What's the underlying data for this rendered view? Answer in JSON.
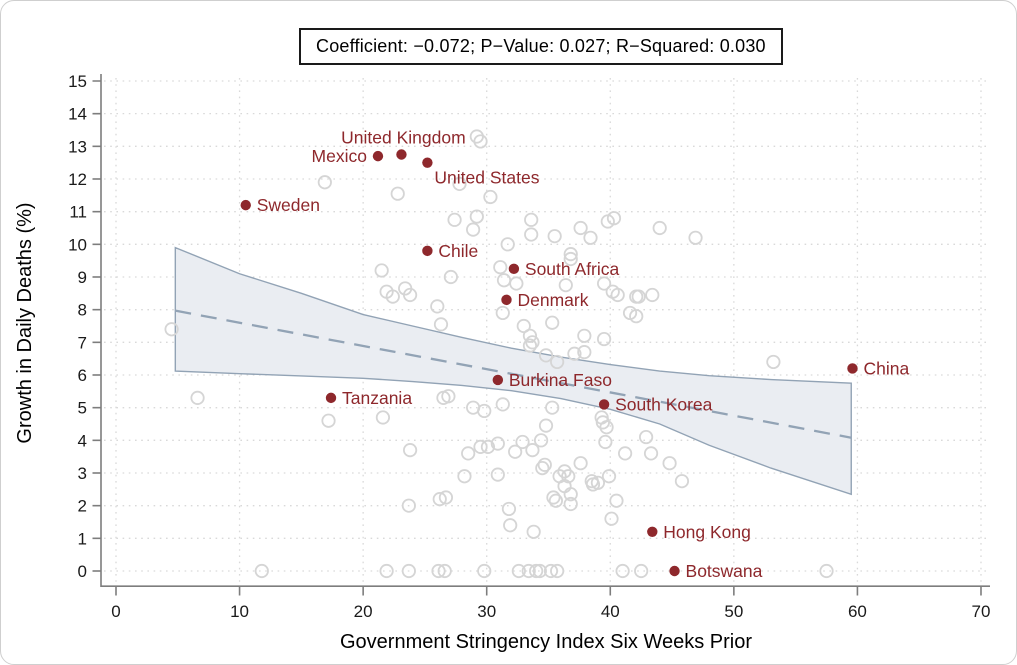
{
  "chart_data": {
    "type": "scatter",
    "title": "Coefficient: −0.072; P−Value: 0.027; R−Squared: 0.030",
    "xlabel": "Government Stringency Index Six Weeks Prior",
    "ylabel": "Growth in Daily Deaths (%)",
    "xlim": [
      0,
      70
    ],
    "ylim": [
      0,
      15
    ],
    "x_ticks": [
      0,
      10,
      20,
      30,
      40,
      50,
      60,
      70
    ],
    "y_ticks": [
      0,
      1,
      2,
      3,
      4,
      5,
      6,
      7,
      8,
      9,
      10,
      11,
      12,
      13,
      14,
      15
    ],
    "grid": "dotted both axes",
    "legend": "none",
    "stats": {
      "coefficient": -0.072,
      "p_value": 0.027,
      "r_squared": 0.03
    },
    "labeled_points": [
      {
        "label": "Sweden",
        "x": 10.5,
        "y": 11.2,
        "placement": "right"
      },
      {
        "label": "Mexico",
        "x": 21.2,
        "y": 12.7,
        "placement": "left"
      },
      {
        "label": "United Kingdom",
        "x": 23.1,
        "y": 12.75,
        "placement": "above"
      },
      {
        "label": "United States",
        "x": 25.2,
        "y": 12.5,
        "placement": "below-right"
      },
      {
        "label": "Chile",
        "x": 25.2,
        "y": 9.8,
        "placement": "right"
      },
      {
        "label": "South Africa",
        "x": 32.2,
        "y": 9.25,
        "placement": "right"
      },
      {
        "label": "Denmark",
        "x": 31.6,
        "y": 8.3,
        "placement": "right"
      },
      {
        "label": "Burkina Faso",
        "x": 30.9,
        "y": 5.85,
        "placement": "right"
      },
      {
        "label": "Tanzania",
        "x": 17.4,
        "y": 5.3,
        "placement": "right"
      },
      {
        "label": "South Korea",
        "x": 39.5,
        "y": 5.1,
        "placement": "right"
      },
      {
        "label": "China",
        "x": 59.6,
        "y": 6.2,
        "placement": "right"
      },
      {
        "label": "Hong Kong",
        "x": 43.4,
        "y": 1.2,
        "placement": "right"
      },
      {
        "label": "Botswana",
        "x": 45.2,
        "y": 0.0,
        "placement": "right"
      }
    ],
    "background_points": [
      [
        29.2,
        13.3
      ],
      [
        29.5,
        13.15
      ],
      [
        27.8,
        11.85
      ],
      [
        16.9,
        11.9
      ],
      [
        22.8,
        11.55
      ],
      [
        30.3,
        11.45
      ],
      [
        27.4,
        10.75
      ],
      [
        29.2,
        10.85
      ],
      [
        28.9,
        10.45
      ],
      [
        33.6,
        10.75
      ],
      [
        33.6,
        10.3
      ],
      [
        35.5,
        10.25
      ],
      [
        37.6,
        10.5
      ],
      [
        38.4,
        10.2
      ],
      [
        39.8,
        10.7
      ],
      [
        40.3,
        10.8
      ],
      [
        44.0,
        10.5
      ],
      [
        46.9,
        10.2
      ],
      [
        31.7,
        10.0
      ],
      [
        21.5,
        9.2
      ],
      [
        31.1,
        9.3
      ],
      [
        27.1,
        9.0
      ],
      [
        31.4,
        8.9
      ],
      [
        32.4,
        8.8
      ],
      [
        36.8,
        9.7
      ],
      [
        36.8,
        9.55
      ],
      [
        36.4,
        8.75
      ],
      [
        39.5,
        8.8
      ],
      [
        42.3,
        8.4
      ],
      [
        43.4,
        8.45
      ],
      [
        21.9,
        8.55
      ],
      [
        22.4,
        8.4
      ],
      [
        23.4,
        8.65
      ],
      [
        23.8,
        8.45
      ],
      [
        26.0,
        8.1
      ],
      [
        26.3,
        7.55
      ],
      [
        31.3,
        7.9
      ],
      [
        40.2,
        8.55
      ],
      [
        40.6,
        8.45
      ],
      [
        42.1,
        8.4
      ],
      [
        41.6,
        7.9
      ],
      [
        42.1,
        7.8
      ],
      [
        33.0,
        7.5
      ],
      [
        33.5,
        7.2
      ],
      [
        33.7,
        7.0
      ],
      [
        33.5,
        6.9
      ],
      [
        35.3,
        7.6
      ],
      [
        37.9,
        7.2
      ],
      [
        37.1,
        6.65
      ],
      [
        37.9,
        6.7
      ],
      [
        34.8,
        6.6
      ],
      [
        35.7,
        6.4
      ],
      [
        39.5,
        7.1
      ],
      [
        4.5,
        7.4
      ],
      [
        53.2,
        6.4
      ],
      [
        6.6,
        5.3
      ],
      [
        17.2,
        4.6
      ],
      [
        21.6,
        4.7
      ],
      [
        23.8,
        3.7
      ],
      [
        26.5,
        5.3
      ],
      [
        26.9,
        5.35
      ],
      [
        28.9,
        5.0
      ],
      [
        29.8,
        4.9
      ],
      [
        31.3,
        5.1
      ],
      [
        35.3,
        5.0
      ],
      [
        39.3,
        4.7
      ],
      [
        39.7,
        4.4
      ],
      [
        42.9,
        4.1
      ],
      [
        30.9,
        3.9
      ],
      [
        32.3,
        3.65
      ],
      [
        32.9,
        3.95
      ],
      [
        33.7,
        3.7
      ],
      [
        34.4,
        4.0
      ],
      [
        34.8,
        4.45
      ],
      [
        39.4,
        4.55
      ],
      [
        39.6,
        3.95
      ],
      [
        34.5,
        3.15
      ],
      [
        34.7,
        3.25
      ],
      [
        35.9,
        2.9
      ],
      [
        36.3,
        3.05
      ],
      [
        36.6,
        2.9
      ],
      [
        37.6,
        3.3
      ],
      [
        30.9,
        2.95
      ],
      [
        38.5,
        2.75
      ],
      [
        39.0,
        2.7
      ],
      [
        36.3,
        2.6
      ],
      [
        28.5,
        3.6
      ],
      [
        29.5,
        3.8
      ],
      [
        30.1,
        3.8
      ],
      [
        41.2,
        3.6
      ],
      [
        43.3,
        3.6
      ],
      [
        44.8,
        3.3
      ],
      [
        45.8,
        2.75
      ],
      [
        23.7,
        2.0
      ],
      [
        26.2,
        2.2
      ],
      [
        26.7,
        2.25
      ],
      [
        28.2,
        2.9
      ],
      [
        31.8,
        1.9
      ],
      [
        31.9,
        1.4
      ],
      [
        33.8,
        1.2
      ],
      [
        36.8,
        2.35
      ],
      [
        36.8,
        2.05
      ],
      [
        35.4,
        2.25
      ],
      [
        35.6,
        2.15
      ],
      [
        38.6,
        2.65
      ],
      [
        39.9,
        2.9
      ],
      [
        40.5,
        2.15
      ],
      [
        40.1,
        1.6
      ],
      [
        11.8,
        0
      ],
      [
        21.9,
        0
      ],
      [
        23.7,
        0
      ],
      [
        26.1,
        0
      ],
      [
        26.6,
        0
      ],
      [
        29.8,
        0
      ],
      [
        32.6,
        0
      ],
      [
        33.4,
        0
      ],
      [
        34.0,
        0
      ],
      [
        34.3,
        0
      ],
      [
        35.2,
        0
      ],
      [
        35.7,
        0
      ],
      [
        41.0,
        0
      ],
      [
        42.5,
        0
      ],
      [
        57.5,
        0
      ]
    ],
    "trend_line": {
      "style": "dashed",
      "x_start": 4.8,
      "y_start": 7.97,
      "x_end": 59.5,
      "y_end": 4.08
    },
    "confidence_band": {
      "upper": [
        [
          4.8,
          9.9
        ],
        [
          10,
          9.1
        ],
        [
          15,
          8.5
        ],
        [
          20,
          7.85
        ],
        [
          24,
          7.5
        ],
        [
          28,
          7.15
        ],
        [
          32,
          6.82
        ],
        [
          36,
          6.55
        ],
        [
          40,
          6.32
        ],
        [
          44,
          6.12
        ],
        [
          48,
          5.98
        ],
        [
          53,
          5.86
        ],
        [
          59.5,
          5.75
        ]
      ],
      "lower": [
        [
          4.8,
          6.12
        ],
        [
          10,
          6.04
        ],
        [
          15,
          5.97
        ],
        [
          20,
          5.9
        ],
        [
          24,
          5.8
        ],
        [
          28,
          5.68
        ],
        [
          32,
          5.52
        ],
        [
          36,
          5.28
        ],
        [
          40,
          4.95
        ],
        [
          44,
          4.5
        ],
        [
          48,
          3.85
        ],
        [
          53,
          3.15
        ],
        [
          59.5,
          2.35
        ]
      ]
    },
    "colors": {
      "labeled_point": "#8e282c",
      "background_point_stroke": "#d5d5d5",
      "band_fill": "#eaedf2",
      "band_stroke": "#92a3b5",
      "trend": "#92a3b5",
      "grid": "#d9d9d9",
      "axis": "#7d7d7d",
      "tick_text": "#1a1a1a"
    }
  }
}
